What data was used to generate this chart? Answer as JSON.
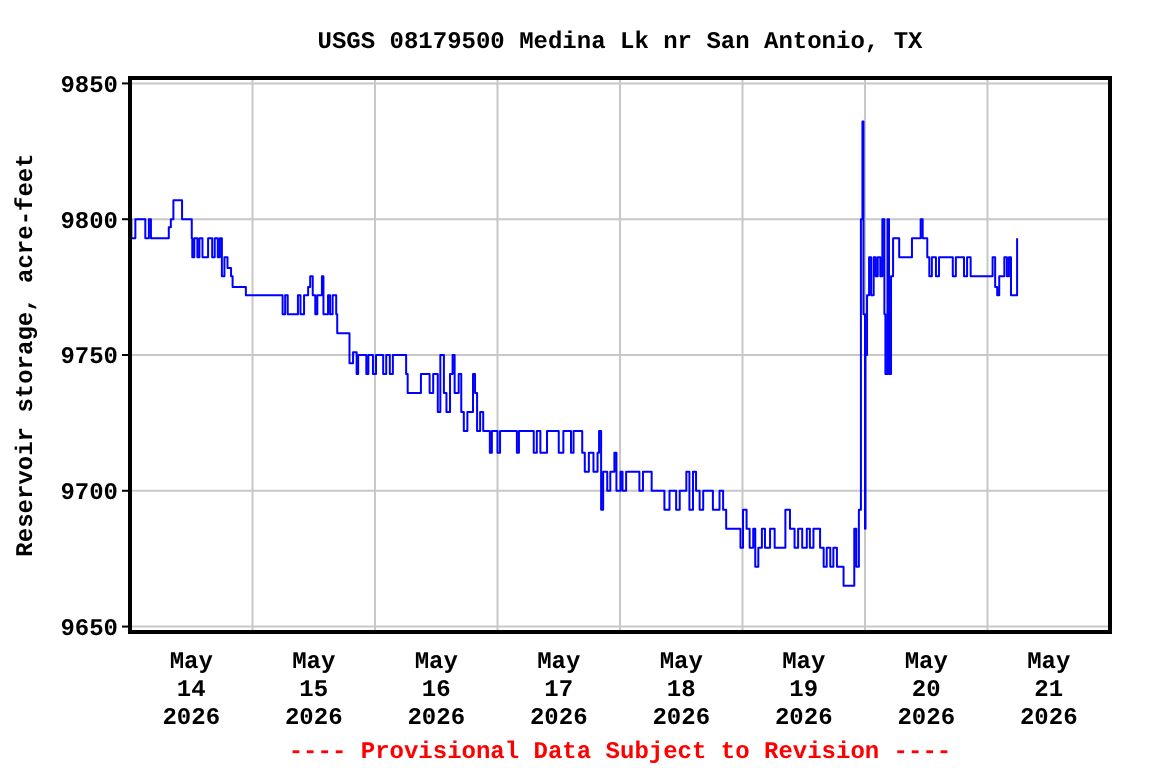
{
  "chart_data": {
    "type": "step",
    "title": "USGS 08179500 Medina Lk nr San Antonio, TX",
    "ylabel": "Reservoir storage, acre-feet",
    "annotations": [
      "---- Provisional Data Subject to Revision ----"
    ],
    "xlim": [
      "2026-05-14T00:00",
      "2026-05-22T00:00"
    ],
    "xticks": [
      {
        "value": "2026-05-14T00:00",
        "label": null
      },
      {
        "value": "2026-05-14T12:00",
        "label": "May\n14\n2026"
      },
      {
        "value": "2026-05-15T00:00",
        "label": null
      },
      {
        "value": "2026-05-15T12:00",
        "label": "May\n15\n2026"
      },
      {
        "value": "2026-05-16T00:00",
        "label": null
      },
      {
        "value": "2026-05-16T12:00",
        "label": "May\n16\n2026"
      },
      {
        "value": "2026-05-17T00:00",
        "label": null
      },
      {
        "value": "2026-05-17T12:00",
        "label": "May\n17\n2026"
      },
      {
        "value": "2026-05-18T00:00",
        "label": null
      },
      {
        "value": "2026-05-18T12:00",
        "label": "May\n18\n2026"
      },
      {
        "value": "2026-05-19T00:00",
        "label": null
      },
      {
        "value": "2026-05-19T12:00",
        "label": "May\n19\n2026"
      },
      {
        "value": "2026-05-20T00:00",
        "label": null
      },
      {
        "value": "2026-05-20T12:00",
        "label": "May\n20\n2026"
      },
      {
        "value": "2026-05-21T00:00",
        "label": null
      },
      {
        "value": "2026-05-21T12:00",
        "label": "May\n21\n2026"
      },
      {
        "value": "2026-05-22T00:00",
        "label": null
      }
    ],
    "ylim": [
      9648,
      9852
    ],
    "yticks": [
      9650,
      9700,
      9750,
      9800,
      9850
    ],
    "grid": true,
    "line_style": "solid",
    "x": [
      "2026-05-14T00:00",
      "2026-05-14T00:16",
      "2026-05-14T01:03",
      "2026-05-14T03:00",
      "2026-05-14T03:42",
      "2026-05-14T04:06",
      "2026-05-14T07:36",
      "2026-05-14T08:00",
      "2026-05-14T08:30",
      "2026-05-14T10:12",
      "2026-05-14T12:06",
      "2026-05-14T12:12",
      "2026-05-14T12:36",
      "2026-05-14T13:12",
      "2026-05-14T13:36",
      "2026-05-14T14:12",
      "2026-05-14T15:18",
      "2026-05-14T16:06",
      "2026-05-14T16:36",
      "2026-05-14T17:12",
      "2026-05-14T17:36",
      "2026-05-14T18:00",
      "2026-05-14T18:30",
      "2026-05-14T19:06",
      "2026-05-14T19:48",
      "2026-05-14T20:06",
      "2026-05-14T22:42",
      "2026-05-15T05:54",
      "2026-05-15T06:24",
      "2026-05-15T06:54",
      "2026-05-15T08:54",
      "2026-05-15T09:24",
      "2026-05-15T10:06",
      "2026-05-15T10:54",
      "2026-05-15T11:18",
      "2026-05-15T11:48",
      "2026-05-15T12:18",
      "2026-05-15T12:42",
      "2026-05-15T13:36",
      "2026-05-15T13:54",
      "2026-05-15T14:48",
      "2026-05-15T15:12",
      "2026-05-15T15:42",
      "2026-05-15T16:24",
      "2026-05-15T16:36",
      "2026-05-15T19:00",
      "2026-05-15T19:42",
      "2026-05-15T20:24",
      "2026-05-15T20:42",
      "2026-05-15T22:18",
      "2026-05-15T22:42",
      "2026-05-15T23:36",
      "2026-05-16T00:12",
      "2026-05-16T01:36",
      "2026-05-16T02:12",
      "2026-05-16T02:54",
      "2026-05-16T03:30",
      "2026-05-16T06:06",
      "2026-05-16T06:24",
      "2026-05-16T09:00",
      "2026-05-16T10:42",
      "2026-05-16T11:24",
      "2026-05-16T12:18",
      "2026-05-16T12:48",
      "2026-05-16T13:30",
      "2026-05-16T14:00",
      "2026-05-16T14:42",
      "2026-05-16T15:12",
      "2026-05-16T15:36",
      "2026-05-16T16:24",
      "2026-05-16T16:54",
      "2026-05-16T17:24",
      "2026-05-16T18:06",
      "2026-05-16T19:12",
      "2026-05-16T19:36",
      "2026-05-16T20:00",
      "2026-05-16T20:36",
      "2026-05-16T21:12",
      "2026-05-16T22:30",
      "2026-05-16T22:54",
      "2026-05-17T00:00",
      "2026-05-17T00:30",
      "2026-05-17T03:48",
      "2026-05-17T04:12",
      "2026-05-17T07:06",
      "2026-05-17T07:42",
      "2026-05-17T08:24",
      "2026-05-17T09:42",
      "2026-05-17T12:00",
      "2026-05-17T12:54",
      "2026-05-17T14:24",
      "2026-05-17T14:54",
      "2026-05-17T16:36",
      "2026-05-17T17:06",
      "2026-05-17T17:54",
      "2026-05-17T18:48",
      "2026-05-17T19:36",
      "2026-05-17T19:54",
      "2026-05-17T20:18",
      "2026-05-17T20:42",
      "2026-05-17T21:30",
      "2026-05-17T22:06",
      "2026-05-17T22:54",
      "2026-05-17T23:18",
      "2026-05-18T00:06",
      "2026-05-18T00:30",
      "2026-05-18T01:12",
      "2026-05-18T03:48",
      "2026-05-18T04:30",
      "2026-05-18T06:12",
      "2026-05-18T08:42",
      "2026-05-18T09:42",
      "2026-05-18T11:00",
      "2026-05-18T11:42",
      "2026-05-18T13:00",
      "2026-05-18T13:36",
      "2026-05-18T14:18",
      "2026-05-18T14:54",
      "2026-05-18T15:36",
      "2026-05-18T16:18",
      "2026-05-18T18:12",
      "2026-05-18T19:30",
      "2026-05-18T20:12",
      "2026-05-18T20:48",
      "2026-05-18T23:36",
      "2026-05-19T00:06",
      "2026-05-19T00:48",
      "2026-05-19T01:24",
      "2026-05-19T02:06",
      "2026-05-19T02:30",
      "2026-05-19T03:06",
      "2026-05-19T03:48",
      "2026-05-19T04:24",
      "2026-05-19T05:24",
      "2026-05-19T06:18",
      "2026-05-19T08:24",
      "2026-05-19T09:18",
      "2026-05-19T10:12",
      "2026-05-19T10:54",
      "2026-05-19T11:42",
      "2026-05-19T12:36",
      "2026-05-19T13:12",
      "2026-05-19T13:54",
      "2026-05-19T15:12",
      "2026-05-19T15:54",
      "2026-05-19T16:30",
      "2026-05-19T17:12",
      "2026-05-19T17:48",
      "2026-05-19T18:30",
      "2026-05-19T19:48",
      "2026-05-19T21:54",
      "2026-05-19T22:18",
      "2026-05-19T22:48",
      "2026-05-19T23:12",
      "2026-05-19T23:30",
      "2026-05-19T23:42",
      "2026-05-20T00:00",
      "2026-05-20T00:06",
      "2026-05-20T00:24",
      "2026-05-20T00:48",
      "2026-05-20T01:12",
      "2026-05-20T01:42",
      "2026-05-20T02:06",
      "2026-05-20T02:30",
      "2026-05-20T03:00",
      "2026-05-20T03:24",
      "2026-05-20T03:48",
      "2026-05-20T04:00",
      "2026-05-20T04:24",
      "2026-05-20T04:42",
      "2026-05-20T05:06",
      "2026-05-20T05:30",
      "2026-05-20T06:42",
      "2026-05-20T09:12",
      "2026-05-20T10:54",
      "2026-05-20T11:18",
      "2026-05-20T12:12",
      "2026-05-20T12:36",
      "2026-05-20T13:06",
      "2026-05-20T13:54",
      "2026-05-20T14:30",
      "2026-05-20T17:12",
      "2026-05-20T17:48",
      "2026-05-20T19:24",
      "2026-05-20T20:00",
      "2026-05-20T20:42",
      "2026-05-21T01:00",
      "2026-05-21T01:30",
      "2026-05-21T01:54",
      "2026-05-21T02:18",
      "2026-05-21T03:18",
      "2026-05-21T03:48",
      "2026-05-21T04:12",
      "2026-05-21T04:36",
      "2026-05-21T05:48"
    ],
    "series": [
      {
        "color": "#0000ff",
        "values": [
          9800,
          9793,
          9800,
          9793,
          9800,
          9793,
          9797,
          9800,
          9807,
          9800,
          9793,
          9786,
          9793,
          9786,
          9793,
          9786,
          9793,
          9786,
          9793,
          9786,
          9793,
          9779,
          9786,
          9782,
          9779,
          9775,
          9772,
          9765,
          9772,
          9765,
          9772,
          9765,
          9772,
          9775,
          9779,
          9772,
          9765,
          9772,
          9779,
          9765,
          9772,
          9765,
          9772,
          9765,
          9758,
          9747,
          9751,
          9743,
          9750,
          9743,
          9750,
          9743,
          9750,
          9743,
          9750,
          9743,
          9750,
          9743,
          9736,
          9743,
          9736,
          9743,
          9729,
          9750,
          9736,
          9729,
          9743,
          9750,
          9736,
          9743,
          9729,
          9722,
          9729,
          9743,
          9736,
          9722,
          9729,
          9722,
          9714,
          9722,
          9714,
          9722,
          9714,
          9722,
          9714,
          9722,
          9714,
          9722,
          9714,
          9722,
          9714,
          9722,
          9714,
          9707,
          9714,
          9707,
          9714,
          9722,
          9693,
          9707,
          9700,
          9707,
          9714,
          9700,
          9707,
          9700,
          9707,
          9700,
          9707,
          9700,
          9693,
          9700,
          9693,
          9700,
          9707,
          9693,
          9707,
          9700,
          9693,
          9700,
          9693,
          9700,
          9693,
          9686,
          9679,
          9693,
          9686,
          9679,
          9686,
          9672,
          9679,
          9686,
          9679,
          9686,
          9679,
          9693,
          9686,
          9679,
          9686,
          9679,
          9686,
          9679,
          9686,
          9679,
          9672,
          9679,
          9672,
          9679,
          9672,
          9665,
          9686,
          9672,
          9693,
          9800,
          9836,
          9765,
          9686,
          9750,
          9772,
          9786,
          9772,
          9786,
          9779,
          9786,
          9779,
          9800,
          9765,
          9743,
          9800,
          9743,
          9779,
          9793,
          9786,
          9793,
          9800,
          9793,
          9786,
          9779,
          9786,
          9779,
          9786,
          9779,
          9786,
          9779,
          9786,
          9779,
          9786,
          9775,
          9772,
          9779,
          9786,
          9779,
          9786,
          9772,
          9793
        ]
      }
    ]
  }
}
